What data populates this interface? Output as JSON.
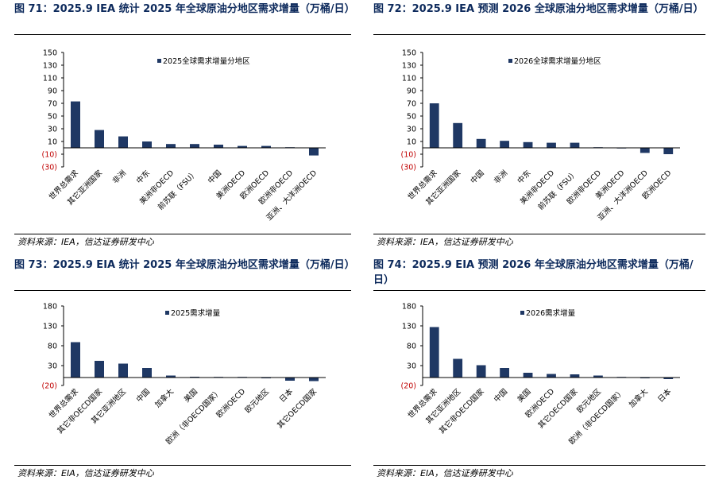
{
  "colors": {
    "bar": "#1f3864",
    "title": "#0d2a5c",
    "neg_label": "#c00000",
    "axis": "#000000"
  },
  "chart_data": [
    {
      "type": "bar",
      "title": "图 71：2025.9 IEA 统计 2025 年全球原油分地区需求增量（万桶/日）",
      "source": "资料来源：IEA，信达证券研发中心",
      "series": [
        {
          "name": "2025全球需求增量分地区",
          "values": [
            73,
            28,
            18,
            10,
            6,
            6,
            5,
            3,
            3,
            0.5,
            -12
          ]
        }
      ],
      "categories": [
        "世界总需求",
        "其它亚洲国家",
        "非洲",
        "中东",
        "美洲非OECD",
        "前苏联（FSU）",
        "中国",
        "美洲OECD",
        "欧洲OECD",
        "欧洲非OECD",
        "亚洲、大洋洲OECD"
      ],
      "ylim": [
        -30,
        150
      ],
      "yticks": [
        "150",
        "130",
        "110",
        "90",
        "70",
        "50",
        "30",
        "10",
        "(10)",
        "(30)"
      ],
      "ytick_values": [
        150,
        130,
        110,
        90,
        70,
        50,
        30,
        10,
        -10,
        -30
      ],
      "legend_position": "top-center",
      "grid": false
    },
    {
      "type": "bar",
      "title": "图 72：2025.9 IEA 预测 2026 全球原油分地区需求增量（万桶/日）",
      "source": "资料来源：IEA，信达证券研发中心",
      "series": [
        {
          "name": "2026全球需求增量分地区",
          "values": [
            70,
            39,
            14,
            11,
            9,
            8,
            8,
            1,
            -1,
            -8,
            -10
          ]
        }
      ],
      "categories": [
        "世界总需求",
        "其它亚洲国家",
        "中国",
        "非洲",
        "中东",
        "美洲非OECD",
        "前苏联（FSU）",
        "欧洲非OECD",
        "美洲OECD",
        "亚洲、大洋洲OECD",
        "欧洲OECD"
      ],
      "ylim": [
        -30,
        150
      ],
      "yticks": [
        "150",
        "130",
        "110",
        "90",
        "70",
        "50",
        "30",
        "10",
        "(10)",
        "(30)"
      ],
      "ytick_values": [
        150,
        130,
        110,
        90,
        70,
        50,
        30,
        10,
        -10,
        -30
      ],
      "legend_position": "top-center",
      "grid": false
    },
    {
      "type": "bar",
      "title": "图 73：2025.9 EIA 统计 2025 年全球原油分地区需求增量（万桶/日）",
      "source": "资料来源：EIA，信达证券研发中心",
      "series": [
        {
          "name": "2025需求增量",
          "values": [
            89,
            42,
            35,
            24,
            5,
            2,
            1,
            0,
            -2,
            -8,
            -9
          ]
        }
      ],
      "categories": [
        "世界总需求",
        "其它非OECD国家",
        "其它亚洲地区",
        "中国",
        "加拿大",
        "美国",
        "欧洲（非OECD国家）",
        "欧洲OECD",
        "欧元地区",
        "日本",
        "其它OECD国家"
      ],
      "ylim": [
        -20,
        180
      ],
      "yticks": [
        "180",
        "130",
        "80",
        "30",
        "(20)"
      ],
      "ytick_values": [
        180,
        130,
        80,
        30,
        -20
      ],
      "legend_position": "top-center",
      "grid": false
    },
    {
      "type": "bar",
      "title": "图 74：2025.9 EIA 预测 2026 年全球原油分地区需求增量（万桶/日）",
      "source": "资料来源：EIA，信达证券研发中心",
      "series": [
        {
          "name": "2026需求增量",
          "values": [
            127,
            47,
            31,
            24,
            12,
            9,
            8,
            5,
            0.5,
            -2,
            -4
          ]
        }
      ],
      "categories": [
        "世界总需求",
        "其它亚洲地区",
        "其它非OECD国家",
        "中国",
        "美国",
        "欧洲OECD",
        "其它OECD国家",
        "欧元地区",
        "欧洲（非OECD国家）",
        "加拿大",
        "日本"
      ],
      "ylim": [
        -20,
        180
      ],
      "yticks": [
        "180",
        "130",
        "80",
        "30",
        "(20)"
      ],
      "ytick_values": [
        180,
        130,
        80,
        30,
        -20
      ],
      "legend_position": "top-center",
      "grid": false
    }
  ]
}
